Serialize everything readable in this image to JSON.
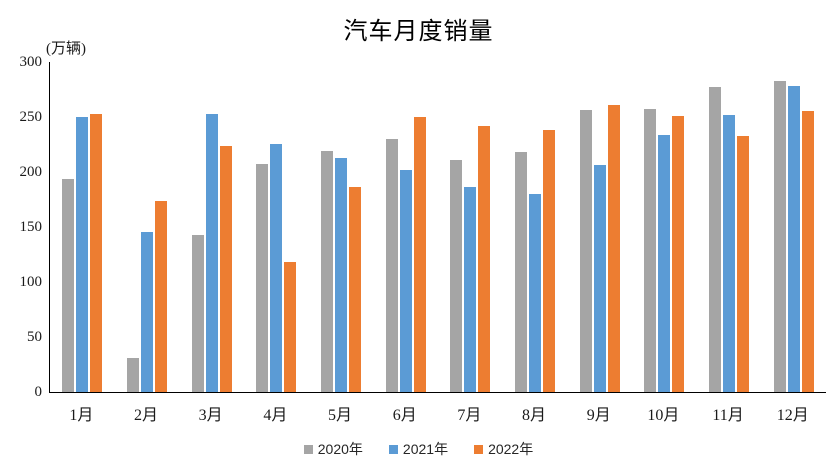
{
  "title": "汽车月度销量",
  "y_axis": {
    "unit_label": "(万辆)"
  },
  "chart_data": {
    "type": "bar",
    "title": "汽车月度销量",
    "categories": [
      "1月",
      "2月",
      "3月",
      "4月",
      "5月",
      "6月",
      "7月",
      "8月",
      "9月",
      "10月",
      "11月",
      "12月"
    ],
    "series": [
      {
        "name": "2020年",
        "color": "#A5A5A5",
        "values": [
          194.1,
          31.0,
          143.0,
          207.0,
          219.4,
          230.0,
          211.2,
          218.6,
          256.5,
          257.3,
          277.0,
          283.1
        ]
      },
      {
        "name": "2021年",
        "color": "#5B9BD5",
        "values": [
          250.3,
          145.5,
          252.6,
          225.2,
          212.8,
          201.5,
          186.4,
          179.9,
          206.7,
          233.3,
          252.2,
          278.6
        ]
      },
      {
        "name": "2022年",
        "color": "#ED7D31",
        "values": [
          253.1,
          173.7,
          223.7,
          118.1,
          186.2,
          250.2,
          242.0,
          238.3,
          261.0,
          250.5,
          232.8,
          255.6
        ]
      }
    ],
    "xlabel": "",
    "ylabel": "(万辆)",
    "ylim": [
      0,
      300
    ],
    "yticks": [
      0,
      50,
      100,
      150,
      200,
      250,
      300
    ],
    "grid": false,
    "legend_position": "bottom",
    "axis_color": "#000000"
  }
}
